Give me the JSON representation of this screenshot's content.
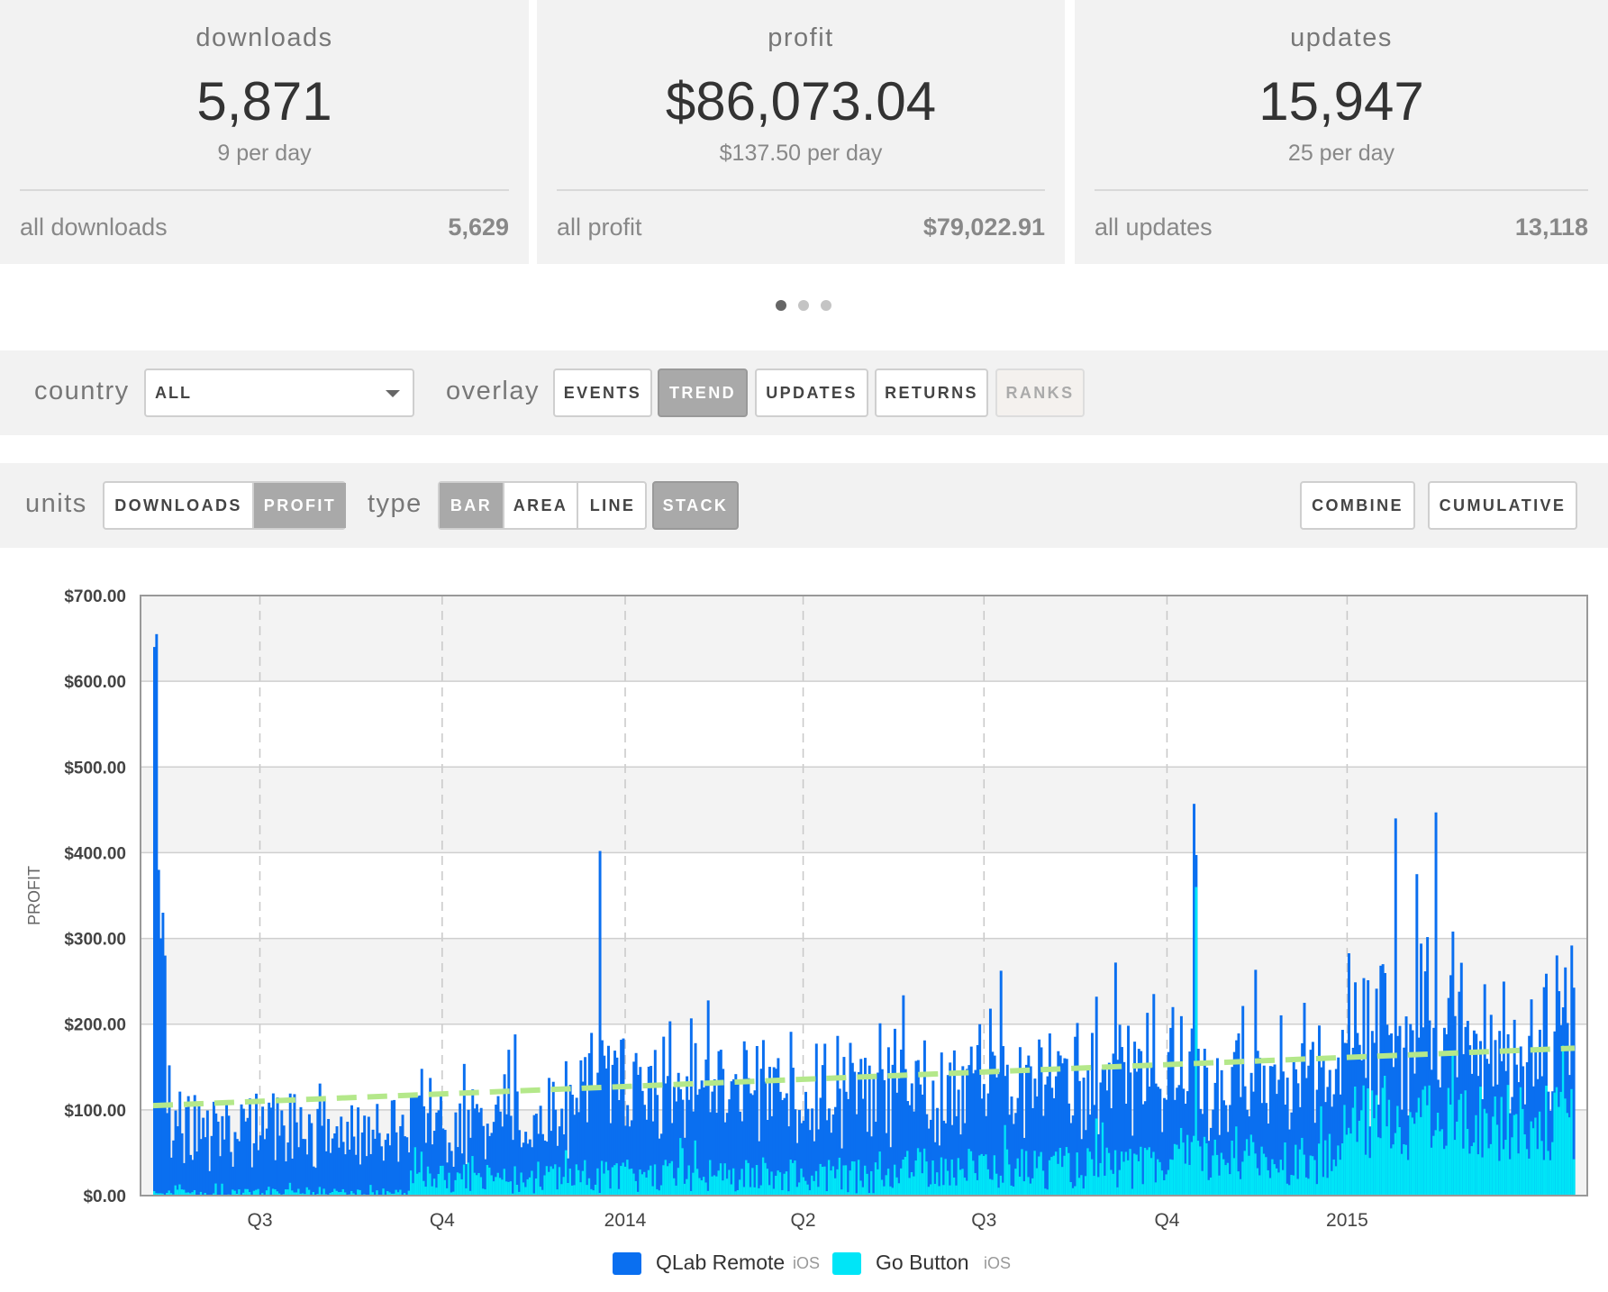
{
  "stats": [
    {
      "label": "downloads",
      "value": "5,871",
      "rate": "9 per day",
      "all_label": "all downloads",
      "all_value": "5,629"
    },
    {
      "label": "profit",
      "value": "$86,073.04",
      "rate": "$137.50 per day",
      "all_label": "all profit",
      "all_value": "$79,022.91"
    },
    {
      "label": "updates",
      "value": "15,947",
      "rate": "25 per day",
      "all_label": "all updates",
      "all_value": "13,118"
    }
  ],
  "pager": {
    "count": 3,
    "active": 0
  },
  "filters": {
    "country_label": "country",
    "country_value": "ALL",
    "overlay_label": "overlay",
    "overlay_buttons": [
      "EVENTS",
      "TREND",
      "UPDATES",
      "RETURNS",
      "RANKS"
    ],
    "overlay_active": "TREND",
    "overlay_disabled": "RANKS"
  },
  "controls": {
    "units_label": "units",
    "units_options": [
      "DOWNLOADS",
      "PROFIT"
    ],
    "units_active": "PROFIT",
    "type_label": "type",
    "type_options": [
      "BAR",
      "AREA",
      "LINE"
    ],
    "type_active": "BAR",
    "stack_label": "STACK",
    "combine_label": "COMBINE",
    "cumulative_label": "CUMULATIVE"
  },
  "colors": {
    "qlab": "#0a6ff0",
    "go": "#00e5f7",
    "trend": "#b4e88a",
    "accent_active": "#a9a9a9"
  },
  "chart_data": {
    "type": "bar",
    "stacked": true,
    "ylabel": "PROFIT",
    "ylim": [
      0,
      700
    ],
    "yticks": [
      "$0.00",
      "$100.00",
      "$200.00",
      "$300.00",
      "$400.00",
      "$500.00",
      "$600.00",
      "$700.00"
    ],
    "xticks": [
      "Q3",
      "Q4",
      "2014",
      "Q2",
      "Q3",
      "Q4",
      "2015"
    ],
    "legend": [
      {
        "name": "QLab Remote",
        "platform": "iOS"
      },
      {
        "name": "Go Button",
        "platform": "iOS"
      }
    ],
    "trend": {
      "start": 105,
      "end": 172
    },
    "days": 670,
    "series": [
      {
        "name": "QLab Remote",
        "description": "daily profit bars, stacked on Go Button",
        "segments": [
          {
            "range": [
              0,
              6
            ],
            "values": [
              640,
              655,
              380,
              300,
              330,
              280
            ]
          },
          {
            "range": [
              6,
              200
            ],
            "mean": 70,
            "spread": 45
          },
          {
            "range": [
              200,
              340
            ],
            "mean": 95,
            "spread": 55
          },
          {
            "range": [
              340,
              480
            ],
            "mean": 100,
            "spread": 60
          },
          {
            "range": [
              480,
              560
            ],
            "mean": 85,
            "spread": 55
          },
          {
            "range": [
              560,
              670
            ],
            "mean": 95,
            "spread": 60
          }
        ],
        "spikes": [
          [
            210,
            402
          ],
          [
            490,
            457
          ],
          [
            585,
            440
          ],
          [
            604,
            447
          ],
          [
            595,
            375
          ]
        ]
      },
      {
        "name": "Go Button",
        "description": "daily profit bars at base of stack",
        "segments": [
          {
            "range": [
              0,
              120
            ],
            "mean": 3,
            "spread": 5
          },
          {
            "range": [
              120,
              340
            ],
            "mean": 22,
            "spread": 20
          },
          {
            "range": [
              340,
              480
            ],
            "mean": 32,
            "spread": 25
          },
          {
            "range": [
              480,
              560
            ],
            "mean": 42,
            "spread": 30
          },
          {
            "range": [
              560,
              670
            ],
            "mean": 85,
            "spread": 45
          }
        ],
        "spikes": [
          [
            491,
            360
          ]
        ]
      }
    ]
  }
}
